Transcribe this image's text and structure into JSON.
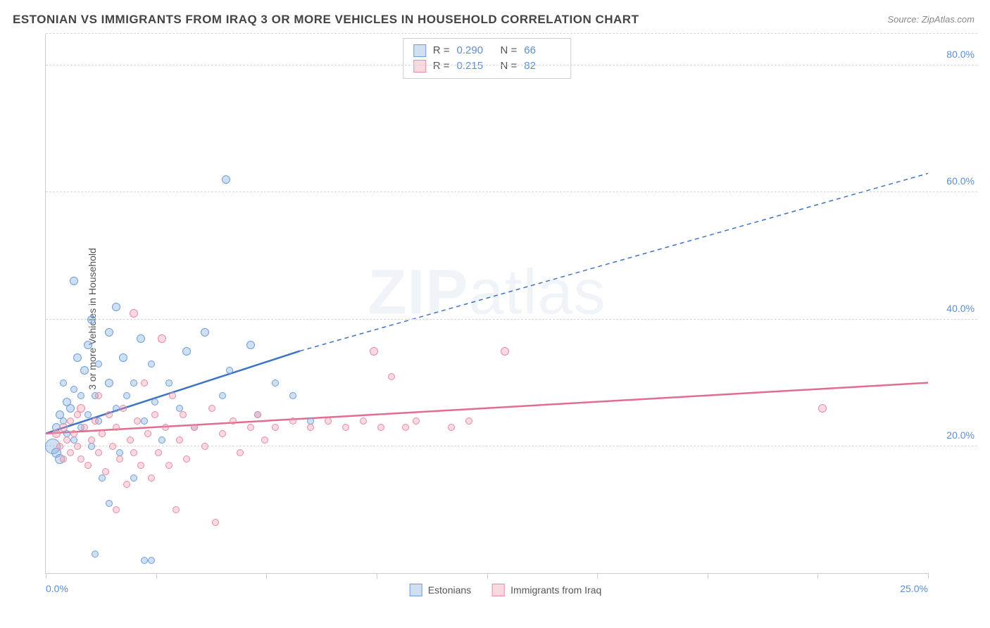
{
  "title": "ESTONIAN VS IMMIGRANTS FROM IRAQ 3 OR MORE VEHICLES IN HOUSEHOLD CORRELATION CHART",
  "source_label": "Source:",
  "source_name": "ZipAtlas.com",
  "y_axis_label": "3 or more Vehicles in Household",
  "watermark_a": "ZIP",
  "watermark_b": "atlas",
  "chart": {
    "type": "scatter",
    "xlim": [
      0,
      25
    ],
    "ylim": [
      0,
      85
    ],
    "x_ticks": [
      0,
      3.125,
      6.25,
      9.375,
      12.5,
      15.625,
      18.75,
      21.875,
      25
    ],
    "x_tick_labels": {
      "0": "0.0%",
      "25": "25.0%"
    },
    "y_ticks": [
      20,
      40,
      60,
      80
    ],
    "y_tick_labels": {
      "20": "20.0%",
      "40": "40.0%",
      "60": "60.0%",
      "80": "80.0%"
    },
    "grid_color": "#d8d8d8",
    "background_color": "#ffffff",
    "axis_tick_color": "#5b8fd6",
    "series": [
      {
        "key": "estonians",
        "label": "Estonians",
        "fill": "rgba(120,165,220,0.35)",
        "stroke": "#6d9edb",
        "line_color": "#3e74c4",
        "r_label": "R =",
        "r_value": "0.290",
        "n_label": "N =",
        "n_value": "66",
        "trend": {
          "x1": 0,
          "y1": 22,
          "x2_solid": 7.2,
          "y2_solid": 35,
          "x2_dash": 25,
          "y2_dash": 63
        },
        "points": [
          {
            "x": 0.2,
            "y": 20,
            "r": 11
          },
          {
            "x": 0.3,
            "y": 19,
            "r": 7
          },
          {
            "x": 0.3,
            "y": 23,
            "r": 6
          },
          {
            "x": 0.4,
            "y": 25,
            "r": 6
          },
          {
            "x": 0.4,
            "y": 18,
            "r": 7
          },
          {
            "x": 0.5,
            "y": 24,
            "r": 5
          },
          {
            "x": 0.5,
            "y": 30,
            "r": 5
          },
          {
            "x": 0.6,
            "y": 27,
            "r": 6
          },
          {
            "x": 0.6,
            "y": 22,
            "r": 5
          },
          {
            "x": 0.7,
            "y": 26,
            "r": 6
          },
          {
            "x": 0.8,
            "y": 21,
            "r": 5
          },
          {
            "x": 0.8,
            "y": 29,
            "r": 5
          },
          {
            "x": 0.8,
            "y": 46,
            "r": 6
          },
          {
            "x": 0.9,
            "y": 34,
            "r": 6
          },
          {
            "x": 1.0,
            "y": 23,
            "r": 5
          },
          {
            "x": 1.0,
            "y": 28,
            "r": 5
          },
          {
            "x": 1.1,
            "y": 32,
            "r": 6
          },
          {
            "x": 1.2,
            "y": 25,
            "r": 5
          },
          {
            "x": 1.2,
            "y": 36,
            "r": 6
          },
          {
            "x": 1.3,
            "y": 20,
            "r": 5
          },
          {
            "x": 1.3,
            "y": 40,
            "r": 6
          },
          {
            "x": 1.4,
            "y": 28,
            "r": 5
          },
          {
            "x": 1.5,
            "y": 24,
            "r": 5
          },
          {
            "x": 1.5,
            "y": 33,
            "r": 5
          },
          {
            "x": 1.6,
            "y": 15,
            "r": 5
          },
          {
            "x": 1.8,
            "y": 30,
            "r": 6
          },
          {
            "x": 1.8,
            "y": 38,
            "r": 6
          },
          {
            "x": 1.8,
            "y": 11,
            "r": 5
          },
          {
            "x": 2.0,
            "y": 26,
            "r": 5
          },
          {
            "x": 2.0,
            "y": 42,
            "r": 6
          },
          {
            "x": 2.1,
            "y": 19,
            "r": 5
          },
          {
            "x": 2.2,
            "y": 34,
            "r": 6
          },
          {
            "x": 2.3,
            "y": 28,
            "r": 5
          },
          {
            "x": 2.5,
            "y": 30,
            "r": 5
          },
          {
            "x": 2.5,
            "y": 15,
            "r": 5
          },
          {
            "x": 2.7,
            "y": 37,
            "r": 6
          },
          {
            "x": 2.8,
            "y": 2,
            "r": 5
          },
          {
            "x": 2.8,
            "y": 24,
            "r": 5
          },
          {
            "x": 3.0,
            "y": 33,
            "r": 5
          },
          {
            "x": 3.0,
            "y": 2,
            "r": 5
          },
          {
            "x": 3.1,
            "y": 27,
            "r": 5
          },
          {
            "x": 3.3,
            "y": 21,
            "r": 5
          },
          {
            "x": 3.5,
            "y": 30,
            "r": 5
          },
          {
            "x": 3.8,
            "y": 26,
            "r": 5
          },
          {
            "x": 4.0,
            "y": 35,
            "r": 6
          },
          {
            "x": 4.2,
            "y": 23,
            "r": 5
          },
          {
            "x": 4.5,
            "y": 38,
            "r": 6
          },
          {
            "x": 5.0,
            "y": 28,
            "r": 5
          },
          {
            "x": 5.1,
            "y": 62,
            "r": 6
          },
          {
            "x": 5.2,
            "y": 32,
            "r": 5
          },
          {
            "x": 5.8,
            "y": 36,
            "r": 6
          },
          {
            "x": 6.0,
            "y": 25,
            "r": 5
          },
          {
            "x": 6.5,
            "y": 30,
            "r": 5
          },
          {
            "x": 7.0,
            "y": 28,
            "r": 5
          },
          {
            "x": 7.5,
            "y": 24,
            "r": 5
          },
          {
            "x": 1.4,
            "y": 3,
            "r": 5
          }
        ]
      },
      {
        "key": "iraq",
        "label": "Immigrants from Iraq",
        "fill": "rgba(240,150,170,0.35)",
        "stroke": "#e88ba3",
        "line_color": "#e36d8e",
        "r_label": "R =",
        "r_value": "0.215",
        "n_label": "N =",
        "n_value": "82",
        "trend": {
          "x1": 0,
          "y1": 22,
          "x2_solid": 25,
          "y2_solid": 30,
          "x2_dash": 25,
          "y2_dash": 30
        },
        "points": [
          {
            "x": 0.3,
            "y": 22,
            "r": 6
          },
          {
            "x": 0.4,
            "y": 20,
            "r": 5
          },
          {
            "x": 0.5,
            "y": 23,
            "r": 6
          },
          {
            "x": 0.5,
            "y": 18,
            "r": 5
          },
          {
            "x": 0.6,
            "y": 21,
            "r": 5
          },
          {
            "x": 0.7,
            "y": 24,
            "r": 5
          },
          {
            "x": 0.7,
            "y": 19,
            "r": 5
          },
          {
            "x": 0.8,
            "y": 22,
            "r": 5
          },
          {
            "x": 0.9,
            "y": 25,
            "r": 5
          },
          {
            "x": 0.9,
            "y": 20,
            "r": 5
          },
          {
            "x": 1.0,
            "y": 26,
            "r": 6
          },
          {
            "x": 1.0,
            "y": 18,
            "r": 5
          },
          {
            "x": 1.1,
            "y": 23,
            "r": 5
          },
          {
            "x": 1.2,
            "y": 17,
            "r": 5
          },
          {
            "x": 1.3,
            "y": 21,
            "r": 5
          },
          {
            "x": 1.4,
            "y": 24,
            "r": 5
          },
          {
            "x": 1.5,
            "y": 19,
            "r": 5
          },
          {
            "x": 1.5,
            "y": 28,
            "r": 5
          },
          {
            "x": 1.6,
            "y": 22,
            "r": 5
          },
          {
            "x": 1.7,
            "y": 16,
            "r": 5
          },
          {
            "x": 1.8,
            "y": 25,
            "r": 5
          },
          {
            "x": 1.9,
            "y": 20,
            "r": 5
          },
          {
            "x": 2.0,
            "y": 23,
            "r": 5
          },
          {
            "x": 2.1,
            "y": 18,
            "r": 5
          },
          {
            "x": 2.2,
            "y": 26,
            "r": 5
          },
          {
            "x": 2.3,
            "y": 14,
            "r": 5
          },
          {
            "x": 2.4,
            "y": 21,
            "r": 5
          },
          {
            "x": 2.5,
            "y": 19,
            "r": 5
          },
          {
            "x": 2.5,
            "y": 41,
            "r": 6
          },
          {
            "x": 2.6,
            "y": 24,
            "r": 5
          },
          {
            "x": 2.7,
            "y": 17,
            "r": 5
          },
          {
            "x": 2.8,
            "y": 30,
            "r": 5
          },
          {
            "x": 2.9,
            "y": 22,
            "r": 5
          },
          {
            "x": 3.0,
            "y": 15,
            "r": 5
          },
          {
            "x": 3.1,
            "y": 25,
            "r": 5
          },
          {
            "x": 3.2,
            "y": 19,
            "r": 5
          },
          {
            "x": 3.3,
            "y": 37,
            "r": 6
          },
          {
            "x": 3.4,
            "y": 23,
            "r": 5
          },
          {
            "x": 3.5,
            "y": 17,
            "r": 5
          },
          {
            "x": 3.6,
            "y": 28,
            "r": 5
          },
          {
            "x": 3.7,
            "y": 10,
            "r": 5
          },
          {
            "x": 3.8,
            "y": 21,
            "r": 5
          },
          {
            "x": 3.9,
            "y": 25,
            "r": 5
          },
          {
            "x": 4.0,
            "y": 18,
            "r": 5
          },
          {
            "x": 4.2,
            "y": 23,
            "r": 5
          },
          {
            "x": 4.5,
            "y": 20,
            "r": 5
          },
          {
            "x": 4.7,
            "y": 26,
            "r": 5
          },
          {
            "x": 4.8,
            "y": 8,
            "r": 5
          },
          {
            "x": 5.0,
            "y": 22,
            "r": 5
          },
          {
            "x": 5.3,
            "y": 24,
            "r": 5
          },
          {
            "x": 5.5,
            "y": 19,
            "r": 5
          },
          {
            "x": 5.8,
            "y": 23,
            "r": 5
          },
          {
            "x": 6.0,
            "y": 25,
            "r": 5
          },
          {
            "x": 6.2,
            "y": 21,
            "r": 5
          },
          {
            "x": 6.5,
            "y": 23,
            "r": 5
          },
          {
            "x": 7.0,
            "y": 24,
            "r": 5
          },
          {
            "x": 7.5,
            "y": 23,
            "r": 5
          },
          {
            "x": 8.0,
            "y": 24,
            "r": 5
          },
          {
            "x": 8.5,
            "y": 23,
            "r": 5
          },
          {
            "x": 9.0,
            "y": 24,
            "r": 5
          },
          {
            "x": 9.3,
            "y": 35,
            "r": 6
          },
          {
            "x": 9.5,
            "y": 23,
            "r": 5
          },
          {
            "x": 9.8,
            "y": 31,
            "r": 5
          },
          {
            "x": 10.2,
            "y": 23,
            "r": 5
          },
          {
            "x": 10.5,
            "y": 24,
            "r": 5
          },
          {
            "x": 11.5,
            "y": 23,
            "r": 5
          },
          {
            "x": 12.0,
            "y": 24,
            "r": 5
          },
          {
            "x": 13.0,
            "y": 35,
            "r": 6
          },
          {
            "x": 22.0,
            "y": 26,
            "r": 6
          },
          {
            "x": 2.0,
            "y": 10,
            "r": 5
          }
        ]
      }
    ]
  }
}
